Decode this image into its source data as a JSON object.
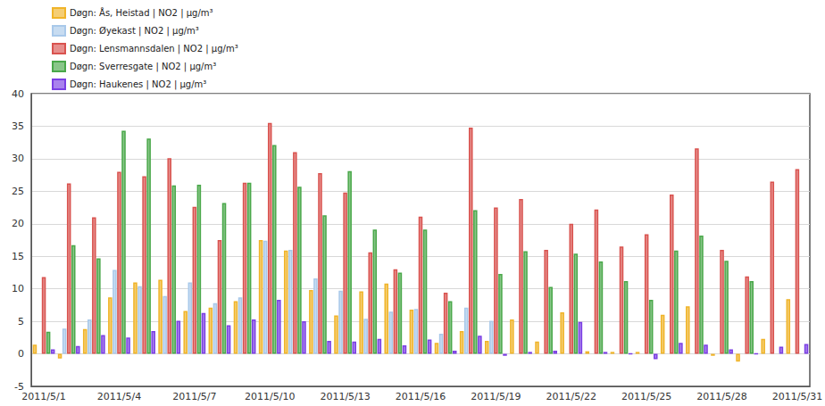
{
  "chart_data": {
    "type": "bar",
    "categories": [
      "2011/5/1",
      null,
      null,
      "2011/5/4",
      null,
      null,
      "2011/5/7",
      null,
      null,
      "2011/5/10",
      null,
      null,
      "2011/5/13",
      null,
      null,
      "2011/5/16",
      null,
      null,
      "2011/5/19",
      null,
      null,
      "2011/5/22",
      null,
      null,
      "2011/5/25",
      null,
      null,
      "2011/5/28",
      null,
      null,
      "2011/5/31"
    ],
    "series": [
      {
        "name": "Døgn: Ås, Heistad | NO2 | µg/m³",
        "color": "#f0b429",
        "values": [
          1.4,
          -0.7,
          3.8,
          8.7,
          11.0,
          11.4,
          6.6,
          7.1,
          8.1,
          17.5,
          15.9,
          9.8,
          5.9,
          9.6,
          10.8,
          6.8,
          1.7,
          3.5,
          2.0,
          5.3,
          1.9,
          6.4,
          0.4,
          0.3,
          0.3,
          6.0,
          7.3,
          -0.3,
          -1.2,
          2.3,
          8.4
        ]
      },
      {
        "name": "Døgn: Øyekast | NO2 | µg/m³",
        "color": "#a9c9ea",
        "values": [
          null,
          3.9,
          5.3,
          12.9,
          10.4,
          8.9,
          11.0,
          7.8,
          8.7,
          17.4,
          16.0,
          11.6,
          9.7,
          5.4,
          6.5,
          6.9,
          3.1,
          7.1,
          5.1,
          null,
          null,
          null,
          null,
          null,
          null,
          null,
          null,
          null,
          null,
          null,
          null
        ]
      },
      {
        "name": "Døgn: Lensmannsdalen | NO2 | µg/m³",
        "color": "#d9534f",
        "values": [
          11.8,
          26.2,
          21.0,
          28.0,
          27.3,
          30.1,
          22.6,
          17.5,
          26.3,
          35.5,
          31.0,
          27.8,
          24.8,
          15.6,
          13.0,
          21.1,
          9.4,
          34.8,
          22.5,
          23.8,
          16.0,
          20.0,
          22.2,
          16.5,
          18.4,
          24.5,
          31.6,
          16.0,
          11.9,
          26.5,
          28.4
        ]
      },
      {
        "name": "Døgn: Sverresgate | NO2 | µg/m³",
        "color": "#4aa84a",
        "values": [
          3.4,
          16.7,
          14.7,
          34.3,
          33.1,
          25.9,
          26.0,
          23.2,
          26.3,
          32.1,
          25.7,
          21.3,
          28.1,
          19.1,
          12.5,
          19.1,
          8.1,
          22.1,
          12.3,
          15.8,
          10.3,
          15.4,
          14.2,
          11.2,
          8.3,
          15.9,
          18.2,
          14.3,
          11.2,
          null,
          null
        ]
      },
      {
        "name": "Døgn: Haukenes | NO2 | µg/m³",
        "color": "#7b3fe4",
        "values": [
          0.7,
          1.2,
          2.9,
          2.5,
          3.5,
          5.1,
          6.3,
          4.4,
          5.3,
          8.3,
          5.0,
          2.0,
          1.9,
          2.3,
          1.3,
          2.2,
          0.5,
          2.8,
          -0.3,
          0.3,
          0.5,
          4.9,
          0.3,
          0.0,
          -0.8,
          1.7,
          1.4,
          0.7,
          0.0,
          1.1,
          1.5
        ]
      }
    ],
    "ylim": [
      -5,
      40
    ],
    "yticks": [
      -5,
      0,
      5,
      10,
      15,
      20,
      25,
      30,
      35,
      40
    ],
    "grid": true,
    "legend": "top-left"
  }
}
